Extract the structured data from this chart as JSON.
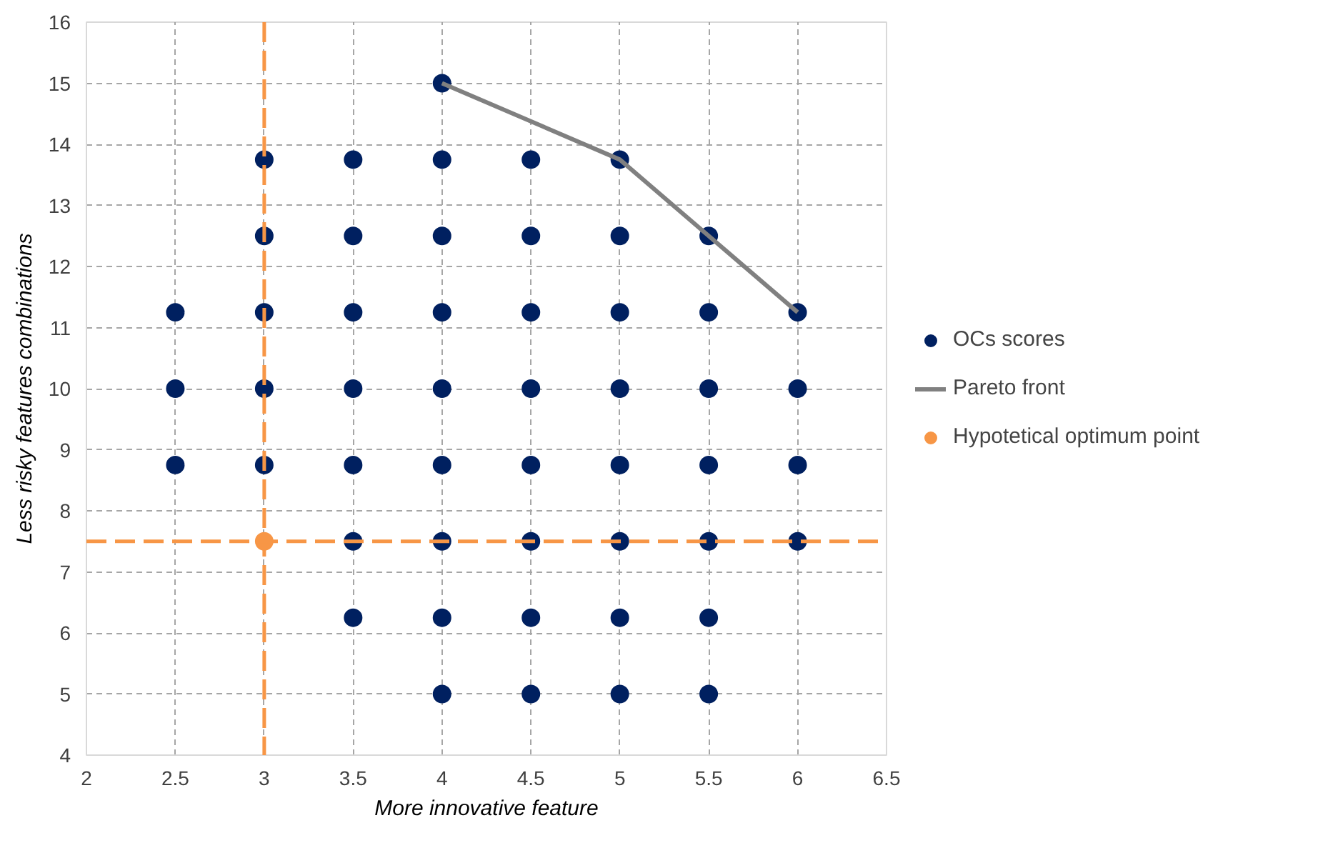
{
  "chart_data": {
    "type": "scatter",
    "xlabel": "More innovative feature",
    "ylabel": "Less risky features combinations",
    "xlim": [
      2,
      6.5
    ],
    "xticks": [
      2,
      2.5,
      3,
      3.5,
      4,
      4.5,
      5,
      5.5,
      6,
      6.5
    ],
    "ylim": [
      4,
      16
    ],
    "yticks": [
      4,
      5,
      6,
      7,
      8,
      9,
      10,
      11,
      12,
      13,
      14,
      15,
      16
    ],
    "grid": true,
    "legend": "right",
    "marker": "circle",
    "series": [
      {
        "name": "OCs scores",
        "color": "#002060",
        "x": [
          2.5,
          2.5,
          2.5,
          3,
          3,
          3,
          3,
          3,
          3.5,
          3.5,
          3.5,
          3.5,
          3.5,
          3.5,
          3.5,
          4,
          4,
          4,
          4,
          4,
          4,
          4,
          4,
          4,
          4.5,
          4.5,
          4.5,
          4.5,
          4.5,
          4.5,
          4.5,
          4.5,
          5,
          5,
          5,
          5,
          5,
          5,
          5,
          5,
          5.5,
          5.5,
          5.5,
          5.5,
          5.5,
          5.5,
          5.5,
          6,
          6,
          6,
          6
        ],
        "values": [
          8.75,
          10,
          11.25,
          8.75,
          10,
          11.25,
          12.5,
          13.75,
          6.25,
          7.5,
          8.75,
          10,
          11.25,
          12.5,
          13.75,
          5,
          6.25,
          7.5,
          8.75,
          10,
          11.25,
          12.5,
          13.75,
          15,
          5,
          6.25,
          7.5,
          8.75,
          10,
          11.25,
          12.5,
          13.75,
          5,
          6.25,
          7.5,
          8.75,
          10,
          11.25,
          12.5,
          13.75,
          5,
          6.25,
          7.5,
          8.75,
          10,
          11.25,
          12.5,
          7.5,
          8.75,
          10,
          11.25
        ]
      },
      {
        "name": "Pareto front",
        "type": "line",
        "color": "#808080",
        "marker": "none",
        "x": [
          4,
          5,
          5.5,
          6
        ],
        "values": [
          15,
          13.75,
          12.5,
          11.25
        ]
      },
      {
        "name": "Hypotetical optimum point",
        "color": "#f79646",
        "x": [
          3
        ],
        "values": [
          7.5
        ]
      }
    ],
    "ref_lines": [
      {
        "axis": "x",
        "value": 3,
        "color": "#f79646",
        "line_style": "dashed"
      },
      {
        "axis": "y",
        "value": 7.5,
        "color": "#f79646",
        "line_style": "dashed"
      }
    ]
  }
}
